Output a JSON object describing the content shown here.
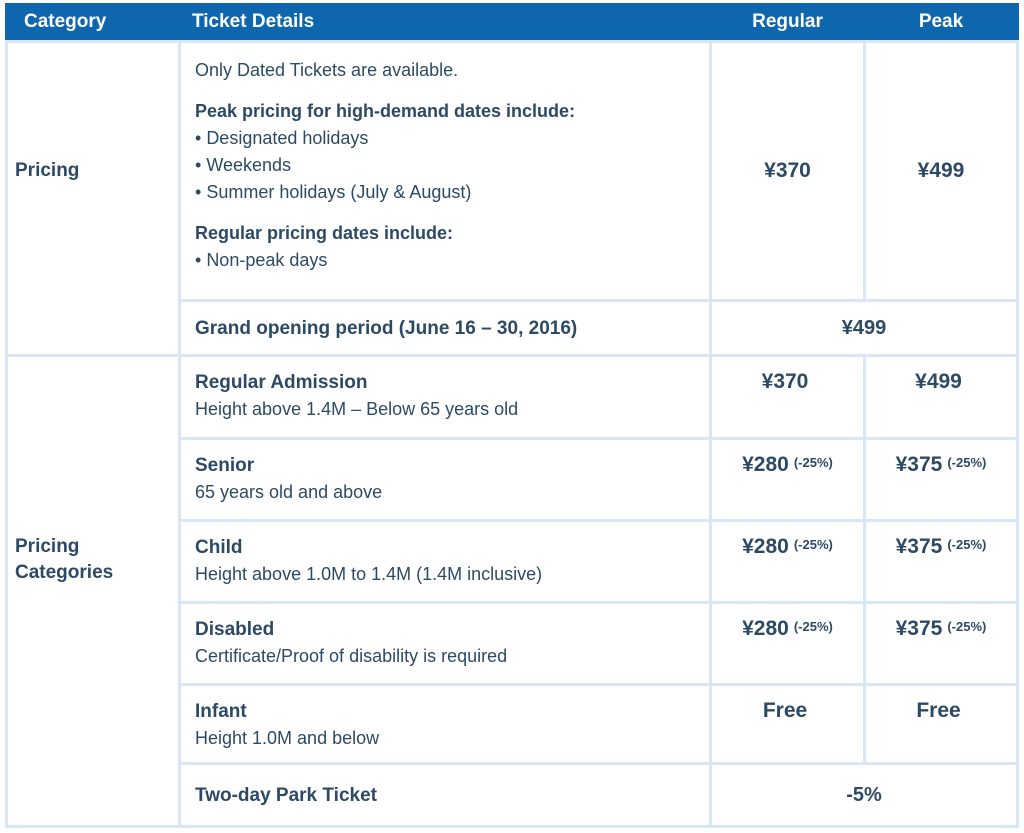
{
  "colors": {
    "header_background": "#0e67ae",
    "header_text": "#ffffff",
    "body_text": "#2c4a66",
    "grid_lines": "#d9e7f4",
    "cell_background": "#ffffff"
  },
  "header": {
    "category": "Category",
    "ticket_details": "Ticket Details",
    "regular": "Regular",
    "peak": "Peak"
  },
  "pricing_section": {
    "category": "Pricing",
    "intro": "Only Dated Tickets are available.",
    "peak_heading": "Peak pricing for high-demand dates include:",
    "peak_bullets": [
      "Designated holidays",
      "Weekends",
      "Summer holidays (July & August)"
    ],
    "regular_heading": "Regular pricing dates include:",
    "regular_bullets": [
      "Non-peak days"
    ],
    "regular_price": "¥370",
    "peak_price": "¥499",
    "grand_opening": {
      "label": "Grand opening period (June 16 – 30, 2016)",
      "price": "¥499"
    }
  },
  "categories_section": {
    "category": "Pricing Categories",
    "rows": [
      {
        "title": "Regular Admission",
        "description": "Height above 1.4M – Below 65 years old",
        "regular": "¥370",
        "regular_note": "",
        "peak": "¥499",
        "peak_note": ""
      },
      {
        "title": "Senior",
        "description": "65 years old and above",
        "regular": "¥280",
        "regular_note": "(-25%)",
        "peak": "¥375",
        "peak_note": "(-25%)"
      },
      {
        "title": "Child",
        "description": "Height above 1.0M to 1.4M (1.4M inclusive)",
        "regular": "¥280",
        "regular_note": "(-25%)",
        "peak": "¥375",
        "peak_note": "(-25%)"
      },
      {
        "title": "Disabled",
        "description": "Certificate/Proof of disability is required",
        "regular": "¥280",
        "regular_note": "(-25%)",
        "peak": "¥375",
        "peak_note": "(-25%)"
      },
      {
        "title": "Infant",
        "description": "Height 1.0M and below",
        "regular": "Free",
        "regular_note": "",
        "peak": "Free",
        "peak_note": ""
      }
    ],
    "two_day": {
      "label": "Two-day Park Ticket",
      "value": "-5%"
    }
  }
}
